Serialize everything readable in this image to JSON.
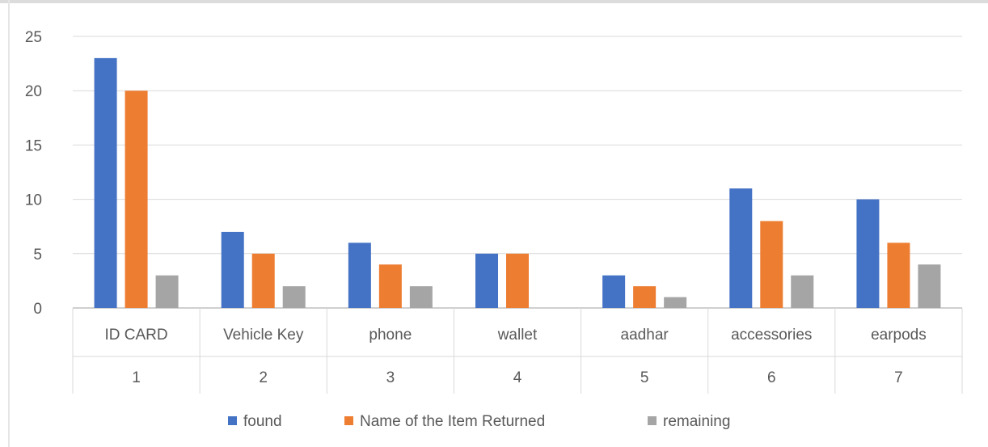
{
  "chart_data": {
    "type": "bar",
    "title": "",
    "xlabel": "",
    "ylabel": "",
    "ylim": [
      0,
      25
    ],
    "yticks": [
      0,
      5,
      10,
      15,
      20,
      25
    ],
    "grid": true,
    "legend_position": "bottom",
    "categories": [
      "ID CARD",
      "Vehicle Key",
      "phone",
      "wallet",
      "aadhar",
      "accessories",
      "earpods"
    ],
    "category_numbers": [
      "1",
      "2",
      "3",
      "4",
      "5",
      "6",
      "7"
    ],
    "series": [
      {
        "name": "found",
        "color": "#4472c4",
        "values": [
          23,
          7,
          6,
          5,
          3,
          11,
          10
        ]
      },
      {
        "name": "Name of the Item Returned",
        "color": "#ed7d31",
        "values": [
          20,
          5,
          4,
          5,
          2,
          8,
          6
        ]
      },
      {
        "name": "remaining",
        "color": "#a5a5a5",
        "values": [
          3,
          2,
          2,
          0,
          1,
          3,
          4
        ]
      }
    ]
  }
}
